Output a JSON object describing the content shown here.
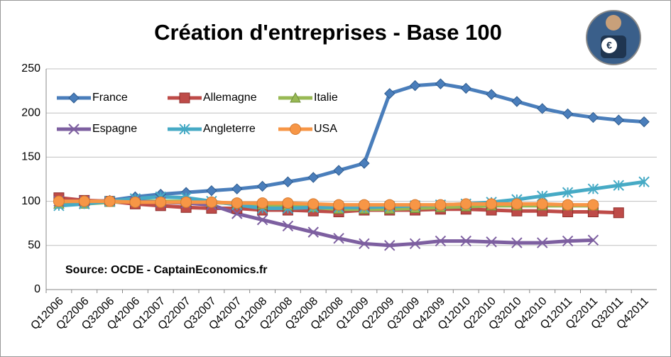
{
  "chart_data": {
    "type": "line",
    "title": "Création d'entreprises - Base 100",
    "annotation": "Source: OCDE - CaptainEconomics.fr",
    "categories": [
      "Q12006",
      "Q22006",
      "Q32006",
      "Q42006",
      "Q12007",
      "Q22007",
      "Q32007",
      "Q42007",
      "Q12008",
      "Q22008",
      "Q32008",
      "Q42008",
      "Q12009",
      "Q22009",
      "Q32009",
      "Q42009",
      "Q12010",
      "Q22010",
      "Q32010",
      "Q42010",
      "Q12011",
      "Q22011",
      "Q32011",
      "Q42011"
    ],
    "series": [
      {
        "name": "France",
        "color": "#4a7ebb",
        "marker": "diamond",
        "values": [
          98,
          99,
          101,
          105,
          108,
          110,
          112,
          114,
          117,
          122,
          127,
          135,
          143,
          222,
          231,
          233,
          228,
          221,
          213,
          205,
          199,
          195,
          192,
          190
        ]
      },
      {
        "name": "Allemagne",
        "color": "#be4b48",
        "marker": "square",
        "values": [
          104,
          101,
          100,
          97,
          95,
          93,
          92,
          92,
          90,
          90,
          89,
          88,
          90,
          90,
          90,
          91,
          91,
          90,
          89,
          89,
          88,
          88,
          87,
          null
        ]
      },
      {
        "name": "Italie",
        "color": "#98b954",
        "marker": "triangle",
        "values": [
          97,
          97,
          99,
          100,
          100,
          100,
          99,
          97,
          96,
          95,
          93,
          91,
          91,
          91,
          92,
          93,
          94,
          95,
          95,
          95,
          95,
          95,
          null,
          null
        ]
      },
      {
        "name": "Espagne",
        "color": "#7d5fa0",
        "marker": "x",
        "values": [
          100,
          100,
          100,
          100,
          99,
          98,
          96,
          86,
          79,
          72,
          65,
          58,
          52,
          50,
          52,
          55,
          55,
          54,
          53,
          53,
          55,
          56,
          null,
          null
        ]
      },
      {
        "name": "Angleterre",
        "color": "#46aac5",
        "marker": "star",
        "values": [
          95,
          97,
          100,
          103,
          105,
          104,
          100,
          96,
          92,
          92,
          93,
          93,
          93,
          94,
          95,
          96,
          97,
          99,
          102,
          106,
          110,
          114,
          118,
          122
        ]
      },
      {
        "name": "USA",
        "color": "#f79646",
        "marker": "circle",
        "values": [
          100,
          100,
          100,
          99,
          99,
          99,
          99,
          98,
          98,
          98,
          97,
          96,
          96,
          96,
          96,
          96,
          97,
          97,
          97,
          97,
          96,
          96,
          null,
          null
        ]
      }
    ],
    "ylim": [
      0,
      250
    ],
    "yticks": [
      0,
      50,
      100,
      150,
      200,
      250
    ],
    "grid": true,
    "legend": "top-left"
  }
}
